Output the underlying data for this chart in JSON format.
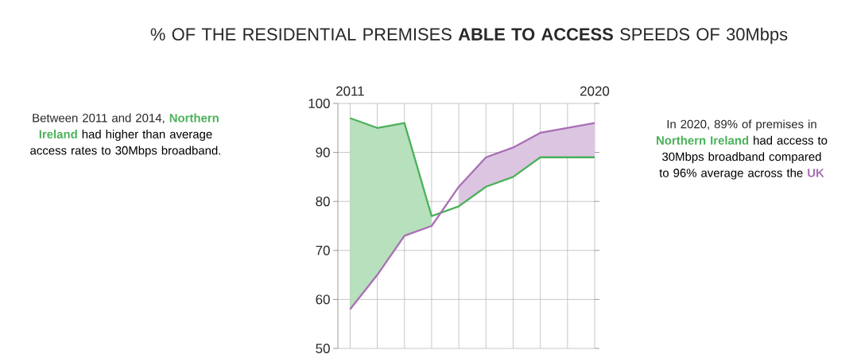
{
  "chart_data": {
    "type": "line",
    "title": "% OF THE RESIDENTIAL PREMISES **ABLE TO ACCESS** SPEEDS OF 30Mbps",
    "x": [
      2011,
      2012,
      2013,
      2014,
      2015,
      2016,
      2017,
      2018,
      2019,
      2020
    ],
    "series": [
      {
        "color": "#4bb15a",
        "values": [
          97,
          95,
          96,
          77,
          79,
          83,
          85,
          89,
          89,
          89
        ],
        "lower": [
          58,
          65,
          73,
          75,
          null,
          null,
          null,
          null,
          null,
          null
        ],
        "upper": [
          97,
          95,
          96,
          77,
          null,
          null,
          null,
          null,
          null,
          null
        ]
      },
      {
        "color": "#a86fb4",
        "values": [
          58,
          65,
          73,
          75,
          83,
          89,
          91,
          94,
          95,
          96
        ],
        "lower": [
          null,
          null,
          null,
          null,
          79,
          83,
          85,
          89,
          89,
          89
        ],
        "upper": [
          null,
          null,
          null,
          null,
          83,
          89,
          91,
          94,
          95,
          96
        ]
      }
    ],
    "xlim": [
      2010.55,
      2020
    ],
    "xticks": [
      2011,
      {
        "value": 2012,
        "label": null
      },
      {
        "value": 2013,
        "label": null
      },
      {
        "value": 2014,
        "label": null
      },
      {
        "value": 2015,
        "label": null
      },
      {
        "value": 2016,
        "label": null
      },
      {
        "value": 2017,
        "label": null
      },
      {
        "value": 2018,
        "label": null
      },
      {
        "value": 2019,
        "label": null
      },
      2020
    ],
    "ylim": [
      50,
      100
    ],
    "yticks": [
      50,
      60,
      70,
      80,
      90,
      100
    ],
    "grid": true,
    "marker": "none",
    "annotations": [
      "Between 2011 and 2014,",
      "Northern Ireland",
      "had higher than average access rates to 30Mbps broadband.",
      "In 2020, 89% of premises in",
      "Northern Ireland",
      "had access to 30Mbps broadband compared to 96% average across the",
      "UK"
    ]
  }
}
